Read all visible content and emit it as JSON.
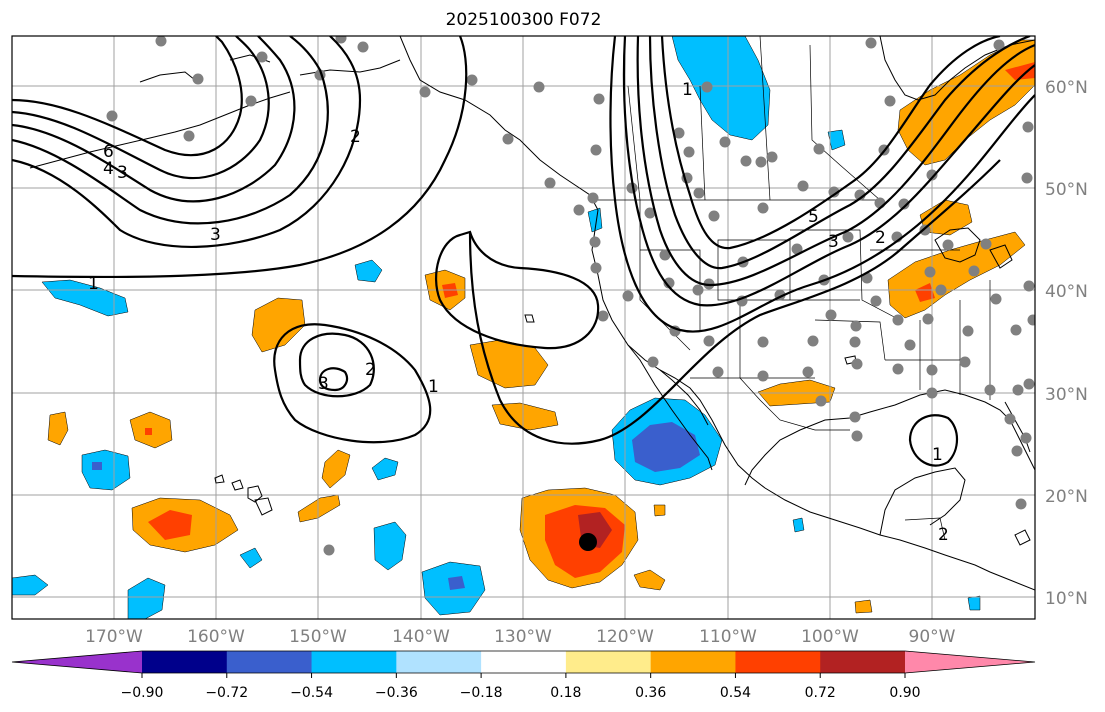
{
  "title": "2025100300 F072",
  "lat_labels": [
    "60°N",
    "50°N",
    "40°N",
    "30°N",
    "20°N",
    "10°N"
  ],
  "lon_labels": [
    "170°W",
    "160°W",
    "150°W",
    "140°W",
    "130°W",
    "120°W",
    "110°W",
    "100°W",
    "90°W"
  ],
  "colorbar": {
    "ticks": [
      "−0.90",
      "−0.72",
      "−0.54",
      "−0.36",
      "−0.18",
      "0.18",
      "0.36",
      "0.54",
      "0.72",
      "0.90"
    ],
    "colors": [
      "#9932CC",
      "#00008B",
      "#3A5FCD",
      "#00BFFF",
      "#B0E2FF",
      "#FFFFFF",
      "#FFEC8B",
      "#FFA500",
      "#FF4000",
      "#B22222",
      "#FF88AA"
    ]
  },
  "contour_labels": [
    "6",
    "4",
    "3",
    "3",
    "1",
    "2",
    "3",
    "2",
    "1",
    "5",
    "3",
    "2",
    "1",
    "1",
    "2"
  ],
  "colors": {
    "station": "#808080",
    "contour": "#000000",
    "storm_center": "#000000"
  }
}
